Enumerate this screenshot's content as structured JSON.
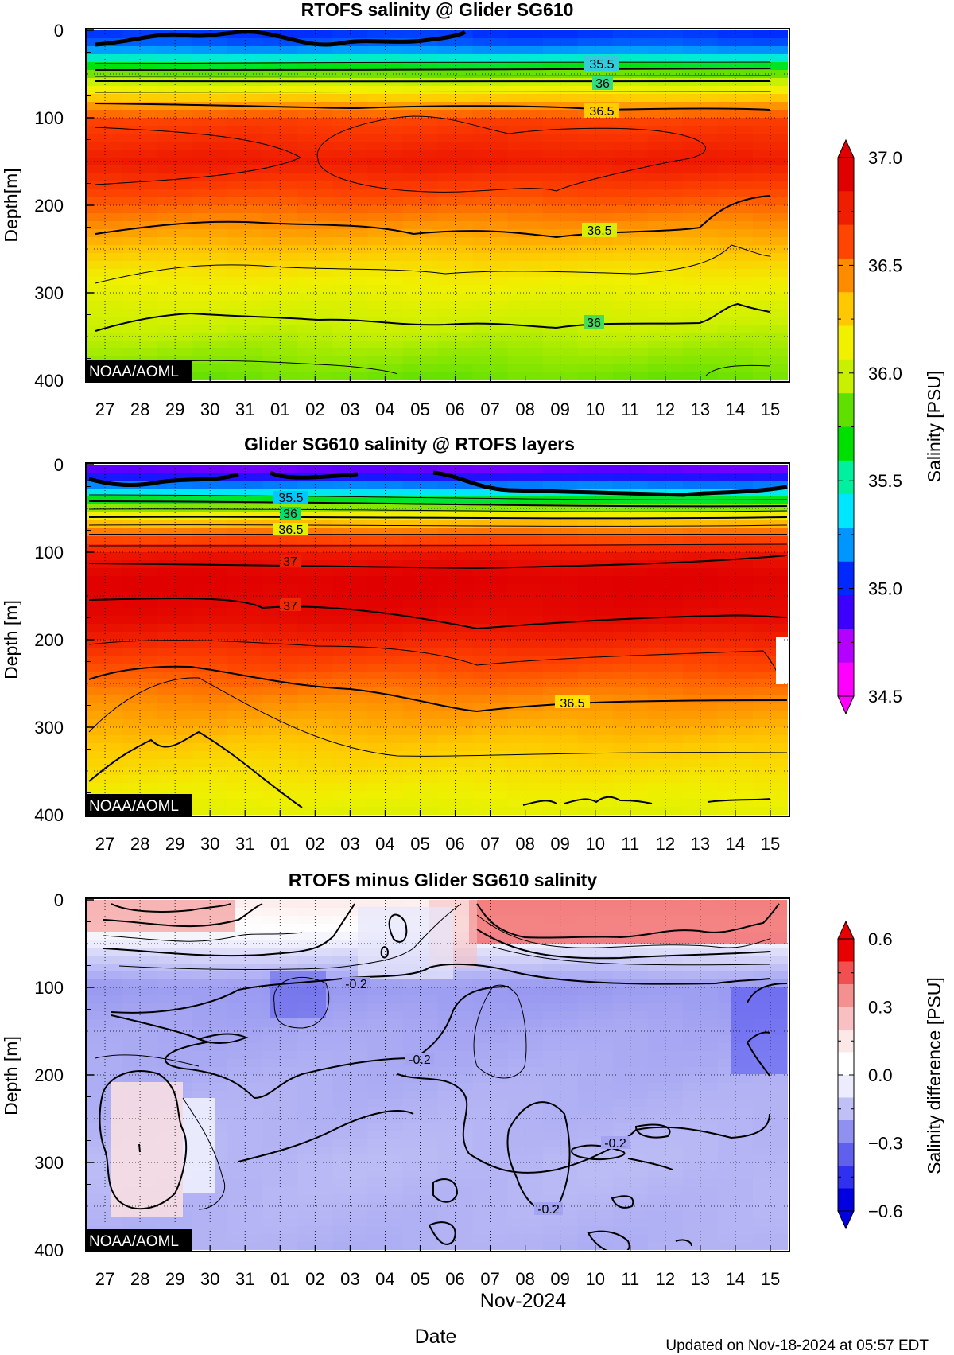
{
  "figure": {
    "month_label": "Nov-2024",
    "xlabel": "Date",
    "updated": "Updated on Nov-18-2024 at 05:57 EDT",
    "watermark": "NOAA/AOML"
  },
  "chart_data": [
    {
      "type": "heatmap",
      "title": "RTOFS salinity @ Glider SG610",
      "ylabel": "Depth[m]",
      "xlabel": "",
      "x": [
        "27",
        "28",
        "29",
        "30",
        "31",
        "01",
        "02",
        "03",
        "04",
        "05",
        "06",
        "07",
        "08",
        "09",
        "10",
        "11",
        "12",
        "13",
        "14",
        "15"
      ],
      "ylim": [
        0,
        400
      ],
      "yticks": [
        "0",
        "100",
        "200",
        "300",
        "400"
      ],
      "colormap": "salinity",
      "grid": true,
      "contour_labels": [
        "35.5",
        "36",
        "36.5",
        "36.5",
        "36"
      ],
      "layers": [
        {
          "depth": 0,
          "value": 35.0
        },
        {
          "depth": 20,
          "value": 35.1
        },
        {
          "depth": 35,
          "value": 35.5
        },
        {
          "depth": 50,
          "value": 35.85
        },
        {
          "depth": 65,
          "value": 36.1
        },
        {
          "depth": 85,
          "value": 36.45
        },
        {
          "depth": 105,
          "value": 36.7
        },
        {
          "depth": 150,
          "value": 36.85
        },
        {
          "depth": 190,
          "value": 36.65
        },
        {
          "depth": 230,
          "value": 36.45
        },
        {
          "depth": 280,
          "value": 36.2
        },
        {
          "depth": 340,
          "value": 36.0
        },
        {
          "depth": 400,
          "value": 35.85
        }
      ]
    },
    {
      "type": "heatmap",
      "title": "Glider SG610 salinity @ RTOFS layers",
      "ylabel": "Depth [m]",
      "xlabel": "",
      "x": [
        "27",
        "28",
        "29",
        "30",
        "31",
        "01",
        "02",
        "03",
        "04",
        "05",
        "06",
        "07",
        "08",
        "09",
        "10",
        "11",
        "12",
        "13",
        "14",
        "15"
      ],
      "ylim": [
        0,
        400
      ],
      "yticks": [
        "0",
        "100",
        "200",
        "300",
        "400"
      ],
      "colormap": "salinity",
      "grid": true,
      "contour_labels": [
        "35.5",
        "36",
        "36.5",
        "37",
        "37",
        "36.5"
      ],
      "layers": [
        {
          "depth": 0,
          "value": 34.7
        },
        {
          "depth": 15,
          "value": 34.95
        },
        {
          "depth": 30,
          "value": 35.3
        },
        {
          "depth": 45,
          "value": 35.75
        },
        {
          "depth": 60,
          "value": 36.2
        },
        {
          "depth": 80,
          "value": 36.6
        },
        {
          "depth": 105,
          "value": 36.9
        },
        {
          "depth": 130,
          "value": 37.0
        },
        {
          "depth": 175,
          "value": 36.95
        },
        {
          "depth": 220,
          "value": 36.7
        },
        {
          "depth": 270,
          "value": 36.5
        },
        {
          "depth": 330,
          "value": 36.3
        },
        {
          "depth": 400,
          "value": 36.1
        }
      ]
    },
    {
      "type": "heatmap",
      "title": "RTOFS minus Glider SG610 salinity",
      "ylabel": "Depth [m]",
      "xlabel": "Date",
      "x": [
        "27",
        "28",
        "29",
        "30",
        "31",
        "01",
        "02",
        "03",
        "04",
        "05",
        "06",
        "07",
        "08",
        "09",
        "10",
        "11",
        "12",
        "13",
        "14",
        "15"
      ],
      "ylim": [
        0,
        400
      ],
      "yticks": [
        "0",
        "100",
        "200",
        "300",
        "400"
      ],
      "colormap": "difference",
      "grid": true,
      "contour_labels": [
        "-0.2",
        "-0.2",
        "-0.2",
        "-0.2"
      ],
      "layers": [
        {
          "depth": 0,
          "value": 0.15
        },
        {
          "depth": 30,
          "value": 0.05
        },
        {
          "depth": 60,
          "value": -0.1
        },
        {
          "depth": 100,
          "value": -0.25
        },
        {
          "depth": 150,
          "value": -0.22
        },
        {
          "depth": 220,
          "value": -0.2
        },
        {
          "depth": 300,
          "value": -0.18
        },
        {
          "depth": 400,
          "value": -0.2
        }
      ]
    }
  ],
  "colorbars": [
    {
      "label": "Salinity [PSU]",
      "min": 34.5,
      "max": 37.0,
      "ticks": [
        "37.0",
        "36.5",
        "36.0",
        "35.5",
        "35.0",
        "34.5"
      ],
      "colors": [
        "#ff00ff",
        "#b400ff",
        "#3c00ff",
        "#0028ff",
        "#0096ff",
        "#00e6ff",
        "#00f0a0",
        "#00e000",
        "#60e000",
        "#c8f000",
        "#f0f000",
        "#ffc800",
        "#ff8c00",
        "#ff4600",
        "#f01e00",
        "#e00000"
      ]
    },
    {
      "label": "Salinity difference [PSU]",
      "min": -0.6,
      "max": 0.6,
      "ticks": [
        "0.6",
        "0.3",
        "0.0",
        "-0.3",
        "-0.6"
      ],
      "colors": [
        "#0000e0",
        "#3030f0",
        "#6060ee",
        "#9090f0",
        "#c0c0f6",
        "#ececfc",
        "#ffffff",
        "#fce8e8",
        "#f8c0c0",
        "#f49090",
        "#f05050",
        "#e80000"
      ]
    }
  ]
}
